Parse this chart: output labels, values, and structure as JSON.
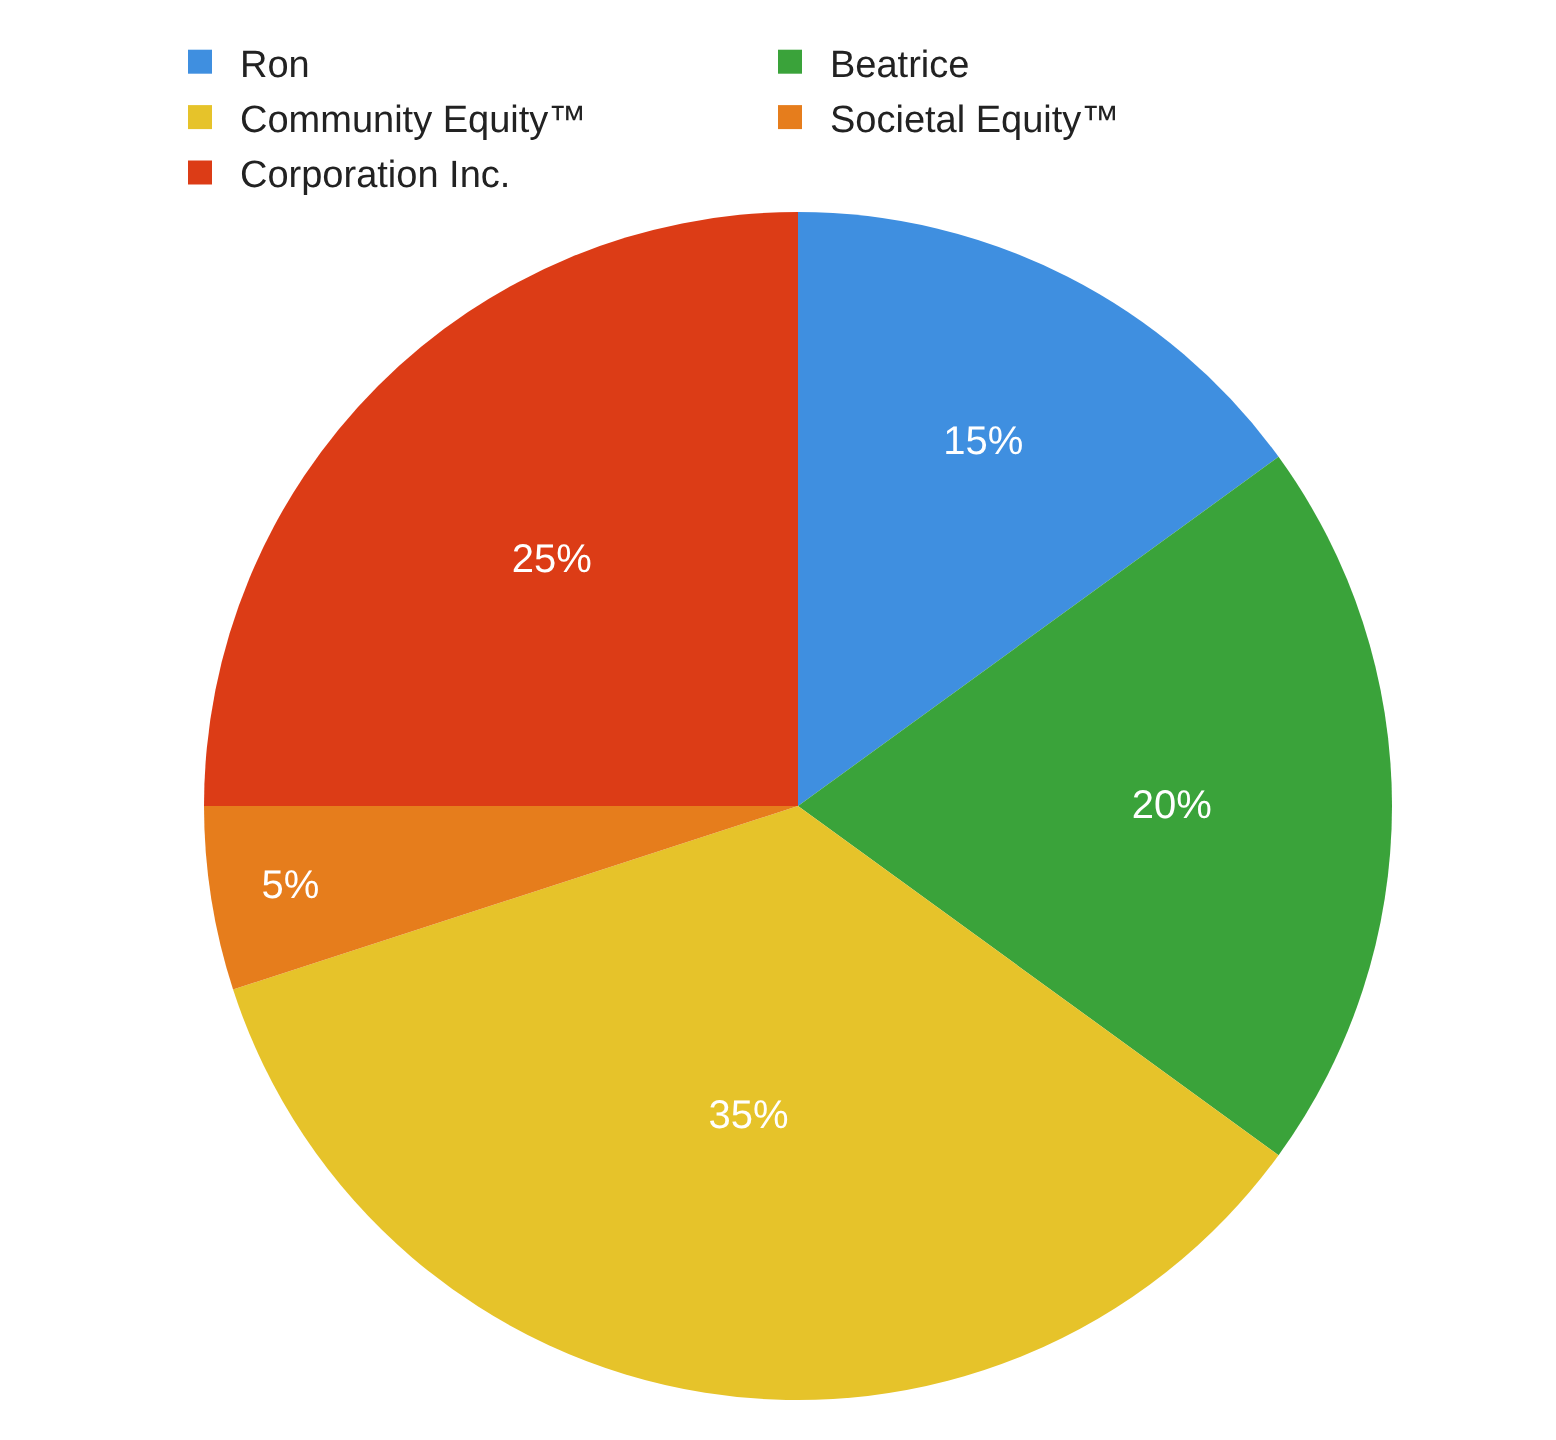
{
  "chart_data": {
    "type": "pie",
    "categories": [
      "Ron",
      "Beatrice",
      "Community Equity™",
      "Societal Equity™",
      "Corporation Inc."
    ],
    "values": [
      15,
      20,
      35,
      5,
      25
    ],
    "colors": [
      "#3f8fe0",
      "#3aa33a",
      "#e6c32a",
      "#e67d1c",
      "#dc3c16"
    ],
    "value_labels": [
      "15%",
      "20%",
      "35%",
      "5%",
      "25%"
    ],
    "legend": "top"
  }
}
